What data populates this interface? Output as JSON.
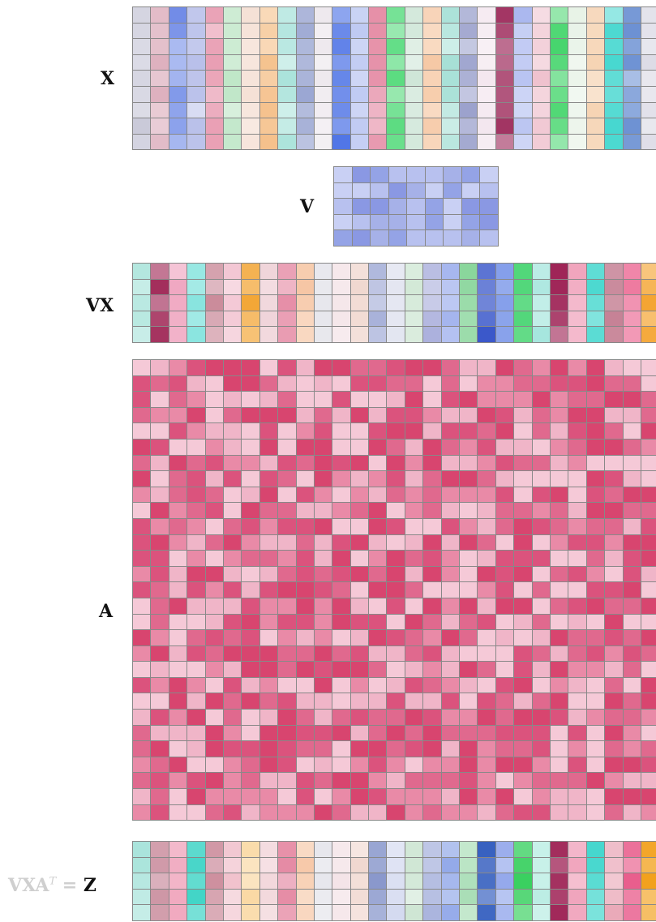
{
  "labels": {
    "x": "X",
    "v": "V",
    "vx": "VX",
    "a": "A",
    "eq_prefix": "VXA",
    "eq_sup": "T",
    "eq_equals": " = ",
    "eq_result": "Z"
  },
  "palettes": {
    "x": [
      "#c9c9d9",
      "#d9a6b6",
      "#6a86e6",
      "#b9c0ea",
      "#e58ca5",
      "#bfe6c7",
      "#f5e0d5",
      "#f5c08a",
      "#a8e2da",
      "#9aa6d2",
      "#ece6ec",
      "#4f74e6",
      "#b3c0f0",
      "#e58ca5",
      "#4fd977",
      "#cfe6d8",
      "#f5c29a",
      "#a6e0d6",
      "#9aa0cc",
      "#f3e6ee",
      "#9b2557",
      "#a9b6ef",
      "#efc2ce",
      "#45d56c",
      "#e7f2e6",
      "#f5d0ae",
      "#45d7cf",
      "#6a8fd2",
      "#dddce6"
    ],
    "v": [
      "#a6b1e8",
      "#b8c1ef",
      "#8a98e3",
      "#c9d0f4",
      "#94a3e6"
    ],
    "vx": [
      "#a8e3da",
      "#9c2050",
      "#f0a8c2",
      "#76e0da",
      "#c98898",
      "#f3c6d3",
      "#f2a12b",
      "#efd2d8",
      "#e58aa4",
      "#f6c6a4",
      "#e6e6ec",
      "#f3e2e6",
      "#f0d7cf",
      "#a9b2da",
      "#dfe2ef",
      "#cde6d2",
      "#a9aedc",
      "#a4b4ee",
      "#8ad69c",
      "#3452c8",
      "#6a8ae6",
      "#52d77a",
      "#a6e6de",
      "#9b1c50",
      "#f0a2bb",
      "#49d8cf",
      "#c47e92",
      "#ea5a89",
      "#f4a12a"
    ],
    "a": [
      "#d8456f",
      "#e0698e",
      "#e98aa7",
      "#f0b5c8",
      "#f5c9d7",
      "#db537d"
    ],
    "z": [
      "#a6e3da",
      "#c98b9c",
      "#f0a6bd",
      "#3fd4c6",
      "#c57c8e",
      "#f1c2cd",
      "#f9d397",
      "#f3d8dc",
      "#e58aa4",
      "#f6c6a4",
      "#e6e6ec",
      "#f3e2e6",
      "#f0d7cf",
      "#8392c9",
      "#cfd6ee",
      "#cfe6d4",
      "#a5b0dc",
      "#8fa6e8",
      "#a4dcb2",
      "#1f4db8",
      "#8aa0ea",
      "#39d060",
      "#b6ece2",
      "#9b1c50",
      "#f0a2bb",
      "#3fd6cc",
      "#eaa8b8",
      "#e85a8a",
      "#f2a01a"
    ]
  }
}
